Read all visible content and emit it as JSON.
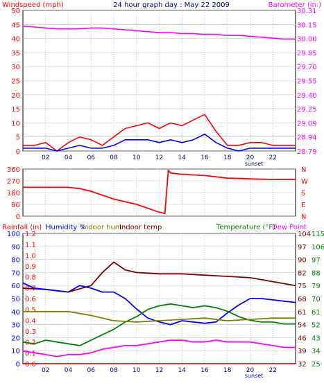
{
  "chart_data": [
    {
      "type": "line",
      "title": "24 hour graph day : May 22 2009",
      "left_axis_label": "Windspeed (mph)",
      "right_axis_label": "Barometer (in.)",
      "colors": {
        "left_axis": "#ff0000",
        "right_axis": "#ff00ff",
        "title": "#000080",
        "wind_gust": "#ff0000",
        "wind_avg": "#0000ff",
        "barometer": "#ff00ff"
      },
      "x_ticks": [
        "02",
        "04",
        "06",
        "08",
        "10",
        "12",
        "14",
        "16",
        "18",
        "20",
        "22"
      ],
      "x_annotation": "sunset",
      "x_range_hours": [
        0,
        24
      ],
      "left_ticks": [
        "50",
        "45",
        "40",
        "35",
        "30",
        "25",
        "20",
        "15",
        "10",
        "5",
        "0"
      ],
      "ylim_left": [
        0,
        50
      ],
      "right_ticks": [
        "30.31",
        "30.15",
        "30.00",
        "29.85",
        "29.70",
        "29.55",
        "29.40",
        "29.25",
        "29.09",
        "28.94",
        "28.79"
      ],
      "ylim_right": [
        28.79,
        30.31
      ],
      "grid": true,
      "series": [
        {
          "key": "barometer",
          "axis": "right",
          "x": [
            0,
            1,
            2,
            3,
            4,
            5,
            6,
            7,
            8,
            9,
            10,
            11,
            12,
            13,
            14,
            15,
            16,
            17,
            18,
            19,
            20,
            21,
            22,
            23,
            24
          ],
          "values": [
            30.14,
            30.13,
            30.12,
            30.11,
            30.11,
            30.11,
            30.12,
            30.12,
            30.11,
            30.1,
            30.09,
            30.08,
            30.07,
            30.07,
            30.06,
            30.06,
            30.05,
            30.05,
            30.04,
            30.04,
            30.03,
            30.02,
            30.01,
            30.0,
            30.0
          ]
        },
        {
          "key": "wind_gust",
          "axis": "left",
          "x": [
            0,
            1,
            2,
            3,
            4,
            5,
            6,
            7,
            8,
            9,
            10,
            11,
            12,
            13,
            14,
            15,
            16,
            17,
            18,
            19,
            20,
            21,
            22,
            23,
            24
          ],
          "values": [
            2,
            2,
            3,
            0,
            3,
            5,
            4,
            2,
            5,
            8,
            9,
            10,
            8,
            10,
            9,
            11,
            13,
            7,
            2,
            2,
            3,
            3,
            2,
            2,
            2
          ]
        },
        {
          "key": "wind_avg",
          "axis": "left",
          "x": [
            0,
            1,
            2,
            3,
            4,
            5,
            6,
            7,
            8,
            9,
            10,
            11,
            12,
            13,
            14,
            15,
            16,
            17,
            18,
            19,
            20,
            21,
            22,
            23,
            24
          ],
          "values": [
            1,
            1,
            1,
            0,
            1,
            2,
            1,
            1,
            2,
            4,
            4,
            4,
            3,
            4,
            3,
            4,
            6,
            3,
            1,
            0,
            1,
            1,
            1,
            1,
            1
          ]
        }
      ]
    },
    {
      "type": "line",
      "left_ticks": [
        "360",
        "270",
        "180",
        "90",
        "0"
      ],
      "ylim": [
        0,
        360
      ],
      "right_ticks": [
        "N",
        "W",
        "S",
        "E",
        "N"
      ],
      "x_range_hours": [
        0,
        24
      ],
      "grid": true,
      "series": [
        {
          "key": "wind_direction",
          "color": "#ff0000",
          "x": [
            0,
            2,
            4,
            5,
            6,
            7,
            8,
            9,
            10,
            11,
            12,
            12.5,
            12.8,
            13,
            14,
            16,
            18,
            20,
            22,
            24
          ],
          "values": [
            220,
            220,
            220,
            210,
            190,
            160,
            130,
            110,
            90,
            60,
            30,
            20,
            350,
            330,
            320,
            310,
            290,
            285,
            280,
            280
          ]
        }
      ]
    },
    {
      "type": "line",
      "labels": {
        "rainfall": "Rainfall (in)",
        "humidity": "Humidity %",
        "indoor_hum": "Indoor hum",
        "indoor_temp": "Indoor temp",
        "temperature": "Temperature (°F)",
        "dew_point": "Dew Point"
      },
      "colors": {
        "rainfall": "#ff0000",
        "humidity": "#0000ff",
        "indoor_hum": "#808000",
        "indoor_temp": "#800000",
        "temperature": "#008000",
        "dew_point": "#ff00ff"
      },
      "x_ticks": [
        "02",
        "04",
        "06",
        "08",
        "10",
        "12",
        "14",
        "16",
        "18",
        "20",
        "22"
      ],
      "x_annotation": "sunset",
      "x_range_hours": [
        0,
        24
      ],
      "rain_ticks": [
        "1.2",
        "1.1",
        "1.0",
        "0.9",
        "0.8",
        "0.7",
        "0.6",
        "0.5",
        "0.4",
        "0.3",
        "0.2",
        "0.1",
        "0.0"
      ],
      "humidity_ticks": [
        "100",
        "90",
        "80",
        "70",
        "60",
        "50",
        "40",
        "30",
        "20",
        "10",
        "0"
      ],
      "ylim_humidity": [
        0,
        100
      ],
      "temp_ticks_a": [
        "104",
        "97",
        "90",
        "82",
        "75",
        "68",
        "61",
        "54",
        "46",
        "39",
        "32"
      ],
      "temp_ticks_b": [
        "115",
        "106",
        "97",
        "88",
        "79",
        "70",
        "61",
        "52",
        "43",
        "34",
        "25"
      ],
      "ylim_temp_a": [
        32,
        104
      ],
      "grid": true,
      "series": [
        {
          "key": "indoor_temp",
          "scale": "humidity",
          "x": [
            0,
            2,
            4,
            6,
            7,
            8,
            9,
            10,
            12,
            14,
            16,
            18,
            20,
            22,
            24
          ],
          "values": [
            58,
            57,
            55,
            60,
            70,
            78,
            72,
            70,
            69,
            69,
            68,
            67,
            66,
            63,
            60
          ]
        },
        {
          "key": "humidity",
          "scale": "humidity",
          "x": [
            0,
            1,
            2,
            3,
            4,
            5,
            6,
            7,
            8,
            9,
            10,
            11,
            12,
            13,
            14,
            15,
            16,
            17,
            18,
            19,
            20,
            21,
            22,
            23,
            24
          ],
          "values": [
            62,
            58,
            57,
            56,
            55,
            60,
            58,
            55,
            55,
            50,
            42,
            35,
            32,
            30,
            33,
            32,
            31,
            32,
            39,
            45,
            50,
            50,
            49,
            48,
            47
          ]
        },
        {
          "key": "temperature",
          "scale": "temp_a",
          "x": [
            0,
            1,
            2,
            3,
            4,
            5,
            6,
            7,
            8,
            9,
            10,
            11,
            12,
            13,
            14,
            15,
            16,
            17,
            18,
            19,
            20,
            21,
            22,
            23,
            24
          ],
          "values": [
            44,
            43,
            45,
            44,
            43,
            42,
            45,
            48,
            51,
            55,
            58,
            62,
            64,
            65,
            64,
            63,
            64,
            63,
            61,
            58,
            56,
            55,
            55,
            54,
            54
          ]
        },
        {
          "key": "indoor_hum",
          "scale": "humidity",
          "x": [
            0,
            2,
            4,
            6,
            8,
            10,
            12,
            14,
            16,
            18,
            20,
            22,
            24
          ],
          "values": [
            40,
            40,
            40,
            37,
            33,
            32,
            33,
            34,
            35,
            33,
            34,
            35,
            35
          ]
        },
        {
          "key": "dew_point",
          "scale": "temp_a",
          "x": [
            0,
            1,
            2,
            3,
            4,
            5,
            6,
            7,
            8,
            9,
            10,
            11,
            12,
            13,
            14,
            15,
            16,
            17,
            18,
            19,
            20,
            21,
            22,
            23,
            24
          ],
          "values": [
            39,
            38,
            37,
            36,
            37,
            37,
            38,
            40,
            41,
            42,
            42,
            43,
            44,
            45,
            45,
            44,
            44,
            45,
            44,
            44,
            44,
            43,
            42,
            41,
            41
          ]
        },
        {
          "key": "rainfall",
          "scale": "rain",
          "x": [
            0,
            24
          ],
          "values": [
            0,
            0
          ]
        }
      ]
    }
  ]
}
